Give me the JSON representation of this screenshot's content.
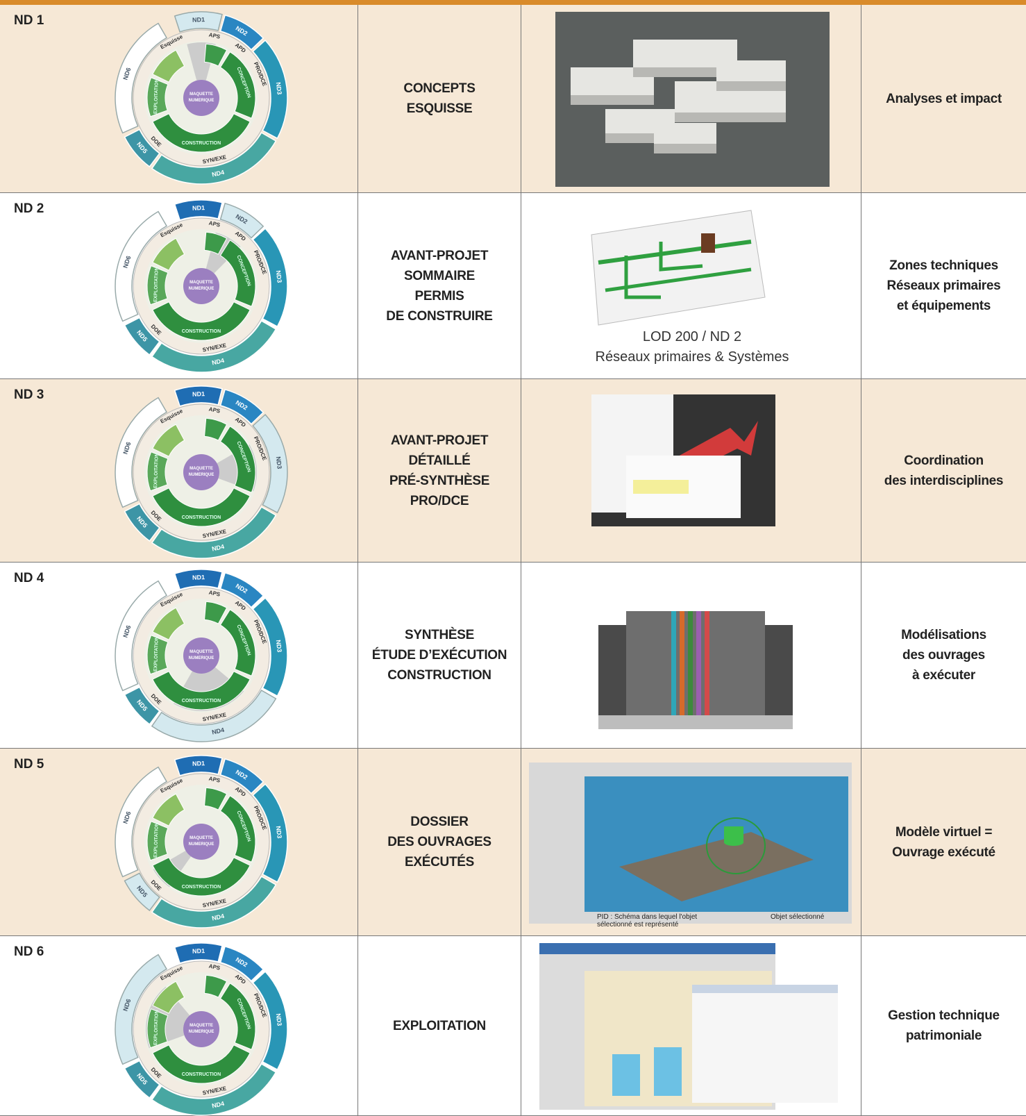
{
  "diagram": {
    "center": [
      "MAQUETTE",
      "NUMERIQUE"
    ],
    "levels": [
      "ND1",
      "ND2",
      "ND3",
      "ND4",
      "ND5",
      "ND6"
    ],
    "phases": [
      "Esquisse",
      "APS",
      "APD",
      "PRO/DCE",
      "SYN/EXE",
      "DOE"
    ],
    "stages": [
      "CONCEPTION",
      "CONSTRUCTION",
      "EXPLOITATION"
    ]
  },
  "rows": [
    {
      "level": "ND 1",
      "phase": [
        "CONCEPTS",
        "ESQUISSE"
      ],
      "outcome": [
        "Analyses et impact"
      ]
    },
    {
      "level": "ND 2",
      "phase": [
        "AVANT-PROJET",
        "SOMMAIRE",
        "PERMIS",
        "DE CONSTRUIRE"
      ],
      "outcome": [
        "Zones techniques",
        "Réseaux primaires",
        "et équipements"
      ],
      "image_caption": [
        "LOD 200 / ND 2",
        "Réseaux primaires & Systèmes"
      ]
    },
    {
      "level": "ND 3",
      "phase": [
        "AVANT-PROJET",
        "DÉTAILLÉ",
        "PRÉ-SYNTHÈSE",
        "PRO/DCE"
      ],
      "outcome": [
        "Coordination",
        "des interdisciplines"
      ]
    },
    {
      "level": "ND 4",
      "phase": [
        "SYNTHÈSE",
        "ÉTUDE D’EXÉCUTION",
        "CONSTRUCTION"
      ],
      "outcome": [
        "Modélisations",
        "des ouvrages",
        "à exécuter"
      ]
    },
    {
      "level": "ND 5",
      "phase": [
        "DOSSIER",
        "DES OUVRAGES",
        "EXÉCUTÉS"
      ],
      "outcome": [
        "Modèle virtuel =",
        "Ouvrage exécuté"
      ],
      "image_notes": [
        "PID : Schéma dans lequel l'objet sélectionné est représenté",
        "Objet sélectionné"
      ]
    },
    {
      "level": "ND 6",
      "phase": [
        "EXPLOITATION"
      ],
      "outcome": [
        "Gestion technique",
        "patrimoniale"
      ]
    }
  ]
}
